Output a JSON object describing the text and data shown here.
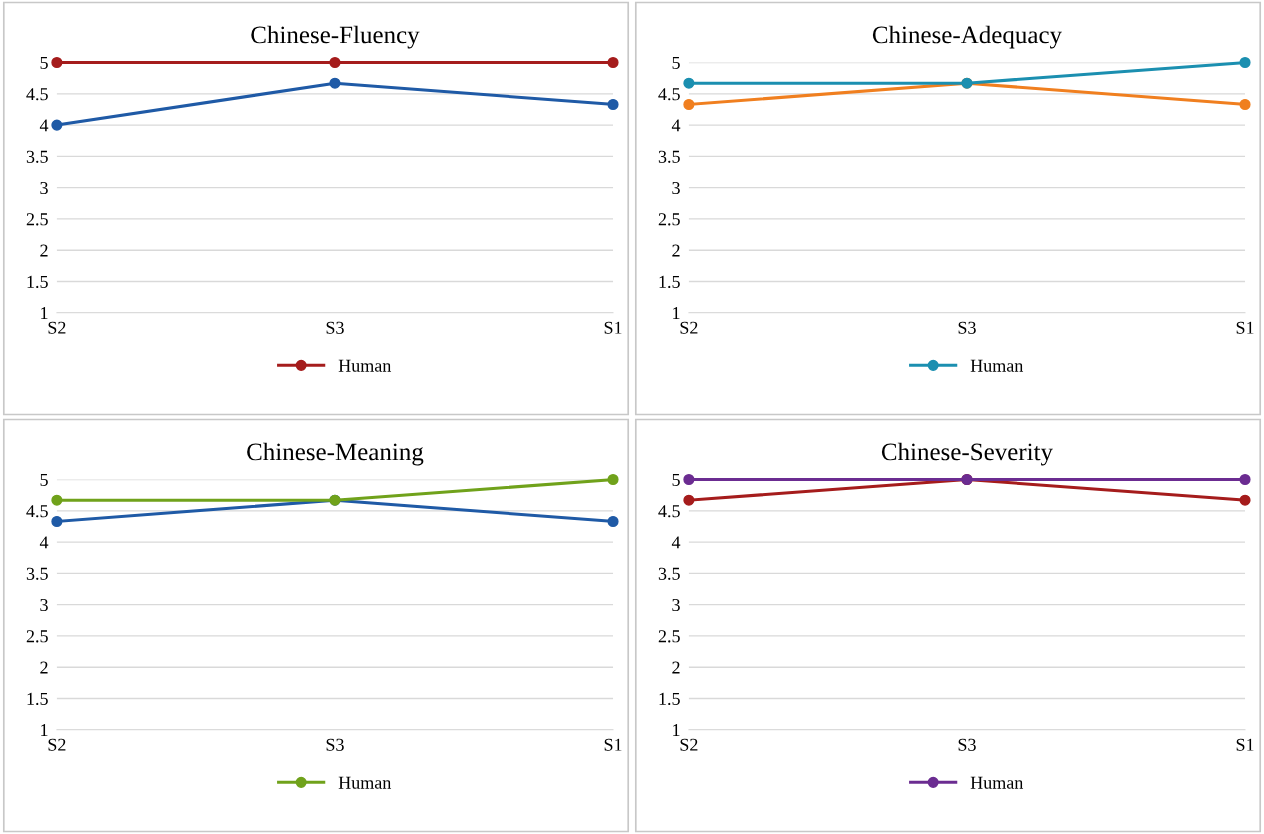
{
  "chart_data": [
    {
      "type": "line",
      "title": "Chinese-Fluency",
      "categories": [
        "S2",
        "S3",
        "S1"
      ],
      "ylim": [
        1,
        5
      ],
      "yticks": [
        1,
        1.5,
        2,
        2.5,
        3,
        3.5,
        4,
        4.5,
        5
      ],
      "grid": "y",
      "legend": "bottom",
      "marker": "circle",
      "line_style": "solid",
      "series": [
        {
          "color": "#1f5aa6",
          "values": [
            4,
            4.67,
            4.33
          ]
        },
        {
          "name": "Human",
          "color": "#a51c1c",
          "values": [
            5,
            5,
            5
          ]
        }
      ]
    },
    {
      "type": "line",
      "title": "Chinese-Adequacy",
      "categories": [
        "S2",
        "S3",
        "S1"
      ],
      "ylim": [
        1,
        5
      ],
      "yticks": [
        1,
        1.5,
        2,
        2.5,
        3,
        3.5,
        4,
        4.5,
        5
      ],
      "grid": "y",
      "legend": "bottom",
      "marker": "circle",
      "line_style": "solid",
      "series": [
        {
          "color": "#f07f1f",
          "values": [
            4.33,
            4.67,
            4.33
          ]
        },
        {
          "name": "Human",
          "color": "#1b8fb0",
          "values": [
            4.67,
            4.67,
            5
          ]
        }
      ]
    },
    {
      "type": "line",
      "title": "Chinese-Meaning",
      "categories": [
        "S2",
        "S3",
        "S1"
      ],
      "ylim": [
        1,
        5
      ],
      "yticks": [
        1,
        1.5,
        2,
        2.5,
        3,
        3.5,
        4,
        4.5,
        5
      ],
      "grid": "y",
      "legend": "bottom",
      "marker": "circle",
      "line_style": "solid",
      "series": [
        {
          "color": "#1f5aa6",
          "values": [
            4.33,
            4.67,
            4.33
          ]
        },
        {
          "name": "Human",
          "color": "#70a21b",
          "values": [
            4.67,
            4.67,
            5
          ]
        }
      ]
    },
    {
      "type": "line",
      "title": "Chinese-Severity",
      "categories": [
        "S2",
        "S3",
        "S1"
      ],
      "ylim": [
        1,
        5
      ],
      "yticks": [
        1,
        1.5,
        2,
        2.5,
        3,
        3.5,
        4,
        4.5,
        5
      ],
      "grid": "y",
      "legend": "bottom",
      "marker": "circle",
      "line_style": "solid",
      "series": [
        {
          "color": "#a51c1c",
          "values": [
            4.67,
            5,
            4.67
          ]
        },
        {
          "name": "Human",
          "color": "#6b2c91",
          "values": [
            5,
            5,
            5
          ]
        }
      ]
    }
  ]
}
